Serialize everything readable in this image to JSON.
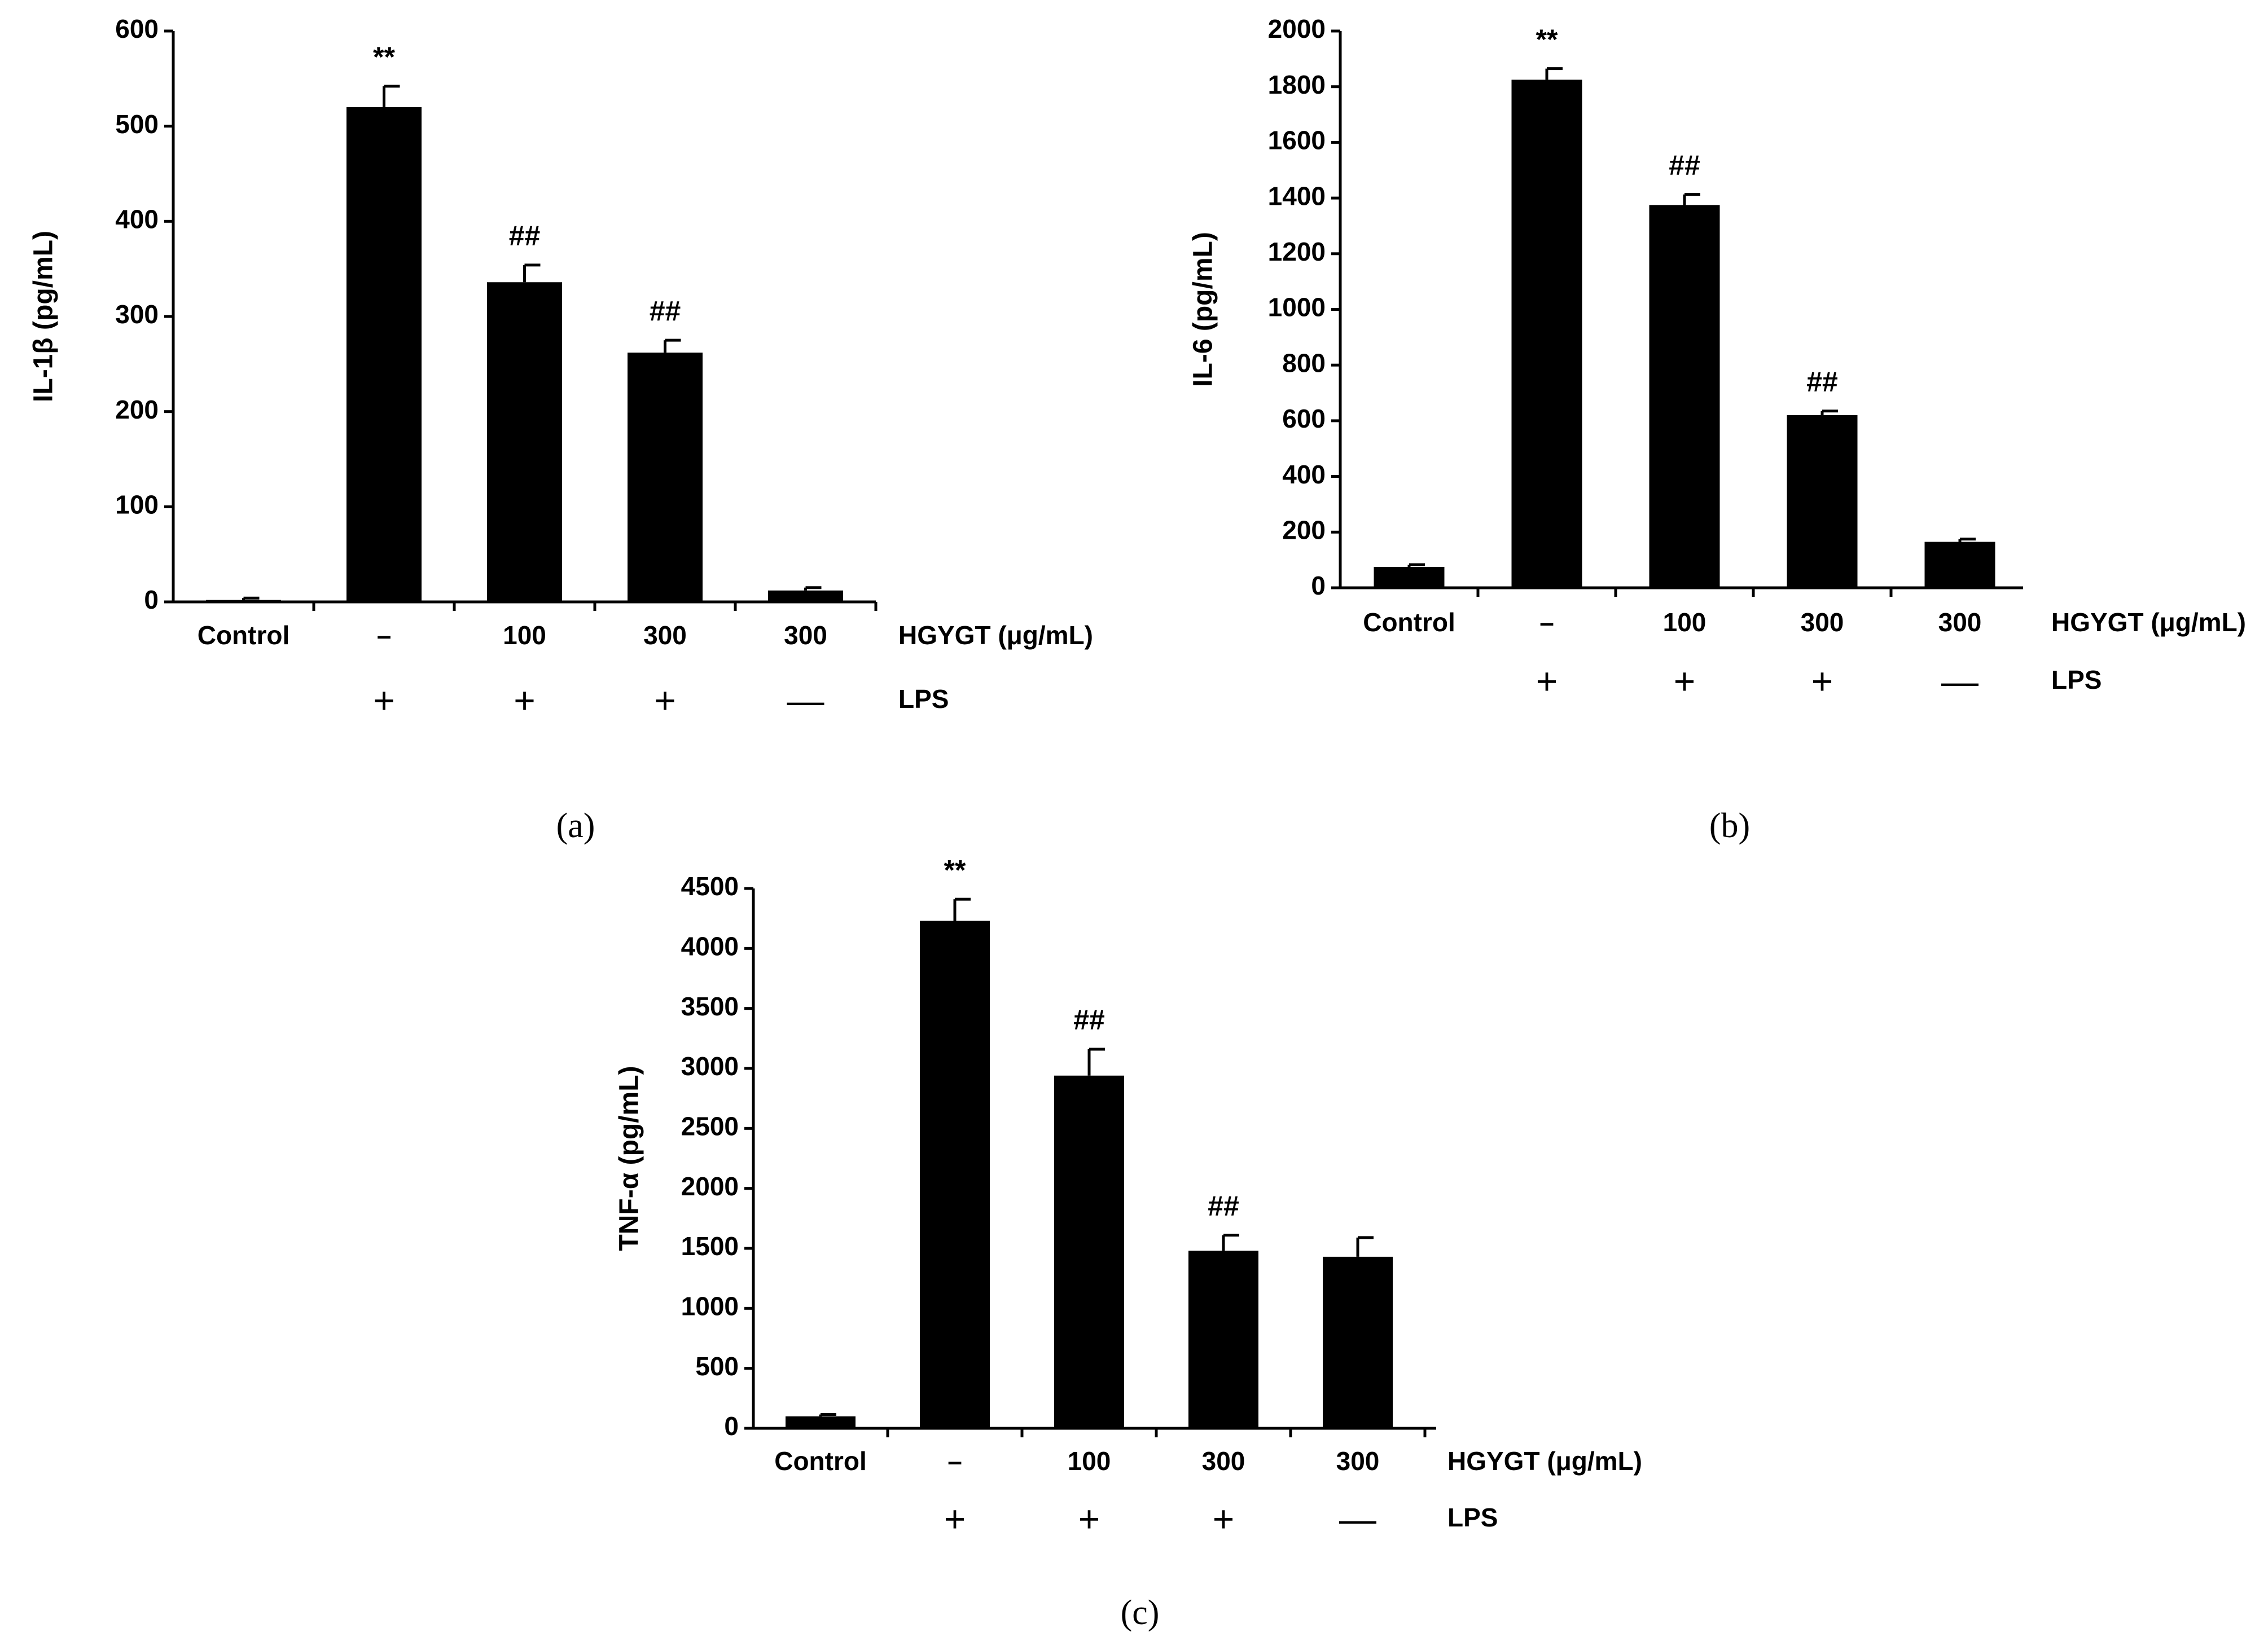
{
  "chart_data": [
    {
      "type": "bar",
      "panel_label": "(a)",
      "ylabel": "IL-1β (pg/mL)",
      "ylim": [
        0,
        600
      ],
      "yticks": [
        "0",
        "100",
        "200",
        "300",
        "400",
        "500",
        "600"
      ],
      "grid": false,
      "categories": [
        "Control",
        "–",
        "100",
        "300",
        "300"
      ],
      "values": [
        2,
        520,
        336,
        262,
        12
      ],
      "errors": [
        2,
        22,
        18,
        13,
        3
      ],
      "annotations": [
        "",
        "**",
        "##",
        "##",
        ""
      ],
      "row1_label": "HGYGT (μg/mL)",
      "row2_marks": [
        "",
        "+",
        "+",
        "+",
        "—"
      ],
      "row2_label": "LPS",
      "bar_color": "#000000"
    },
    {
      "type": "bar",
      "panel_label": "(b)",
      "ylabel": "IL-6 (pg/mL)",
      "ylim": [
        0,
        2000
      ],
      "yticks": [
        "0",
        "200",
        "400",
        "600",
        "800",
        "1000",
        "1200",
        "1400",
        "1600",
        "1800",
        "2000"
      ],
      "grid": false,
      "categories": [
        "Control",
        "–",
        "100",
        "300",
        "300"
      ],
      "values": [
        75,
        1825,
        1375,
        620,
        165
      ],
      "errors": [
        8,
        40,
        38,
        15,
        10
      ],
      "annotations": [
        "",
        "**",
        "##",
        "##",
        ""
      ],
      "row1_label": "HGYGT (μg/mL)",
      "row2_marks": [
        "",
        "+",
        "+",
        "+",
        "—"
      ],
      "row2_label": "LPS",
      "bar_color": "#000000"
    },
    {
      "type": "bar",
      "panel_label": "(c)",
      "ylabel": "TNF-α (pg/mL)",
      "ylim": [
        0,
        4500
      ],
      "yticks": [
        "0",
        "500",
        "1000",
        "1500",
        "2000",
        "2500",
        "3000",
        "3500",
        "4000",
        "4500"
      ],
      "grid": false,
      "categories": [
        "Control",
        "–",
        "100",
        "300",
        "300"
      ],
      "values": [
        100,
        4230,
        2940,
        1480,
        1430
      ],
      "errors": [
        15,
        180,
        220,
        130,
        160
      ],
      "annotations": [
        "",
        "**",
        "##",
        "##",
        ""
      ],
      "row1_label": "HGYGT (μg/mL)",
      "row2_marks": [
        "",
        "+",
        "+",
        "+",
        "—"
      ],
      "row2_label": "LPS",
      "bar_color": "#000000"
    }
  ]
}
